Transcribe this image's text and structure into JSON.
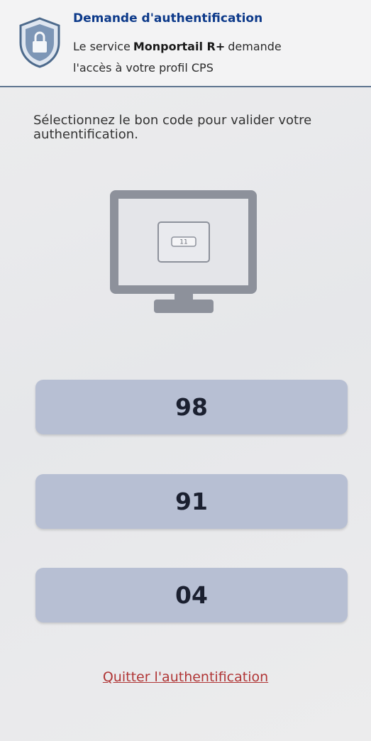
{
  "header": {
    "title": "Demande d'authentification",
    "message_line_1": {
      "prefix": "Le service",
      "service": "Monportail R+",
      "suffix": "demande"
    },
    "message_line_2": "l'accès à votre profil CPS"
  },
  "instruction": "Sélectionnez le bon code pour valider votre authentification.",
  "illustration": {
    "screen_code": "11"
  },
  "codes": [
    "98",
    "91",
    "04"
  ],
  "quit_link": "Quitter l'authentification"
}
